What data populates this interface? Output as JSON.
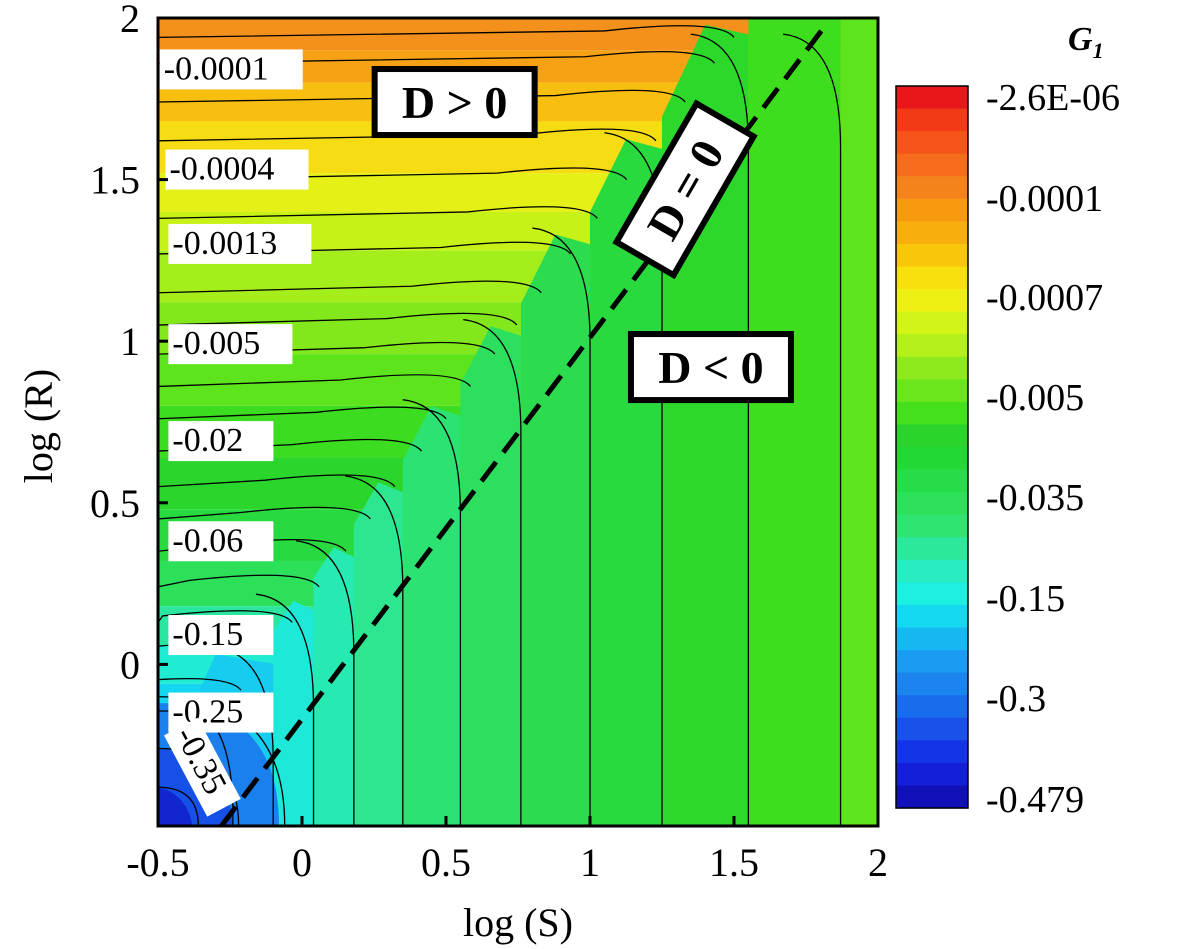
{
  "chart_data": {
    "type": "contour",
    "xlabel": "log (S)",
    "ylabel": "log (R)",
    "xlim": [
      -0.5,
      2
    ],
    "ylim": [
      -0.5,
      2
    ],
    "xticks": [
      "-0.5",
      "0",
      "0.5",
      "1",
      "1.5",
      "2"
    ],
    "yticks": [
      "0",
      "0.5",
      "1",
      "1.5",
      "2"
    ],
    "x_tick_values": [
      -0.5,
      0,
      0.5,
      1,
      1.5,
      2
    ],
    "y_tick_values": [
      0,
      0.5,
      1,
      1.5,
      2
    ],
    "colorbar": {
      "title": "G",
      "title_subscript": "1",
      "tick_labels": [
        "-2.6E-06",
        "-0.0001",
        "-0.0007",
        "-0.005",
        "-0.035",
        "-0.15",
        "-0.3",
        "-0.479"
      ],
      "colors": [
        "#e8181a",
        "#f23a16",
        "#f5551a",
        "#f46c1c",
        "#f5831c",
        "#f79a10",
        "#f8ae0c",
        "#f8c70c",
        "#f8e00e",
        "#eef014",
        "#d2f416",
        "#b4f01c",
        "#8eea1c",
        "#6ae61c",
        "#44e01c",
        "#2ad42a",
        "#22d834",
        "#26dc48",
        "#2ce05c",
        "#30e472",
        "#2ce89a",
        "#28ecc2",
        "#1cf0e0",
        "#14d8f0",
        "#16b8f2",
        "#1a9cf2",
        "#1c84ee",
        "#1a6cee",
        "#1852ea",
        "#1434e8",
        "#1420d8",
        "#1010b8"
      ]
    },
    "contour_labels": [
      {
        "text": "-0.0001",
        "x": -0.48,
        "y": 1.81
      },
      {
        "text": "-0.0004",
        "x": -0.46,
        "y": 1.5
      },
      {
        "text": "-0.0013",
        "x": -0.45,
        "y": 1.27
      },
      {
        "text": "-0.005",
        "x": -0.45,
        "y": 0.96
      },
      {
        "text": "-0.02",
        "x": -0.45,
        "y": 0.66
      },
      {
        "text": "-0.06",
        "x": -0.45,
        "y": 0.35
      },
      {
        "text": "-0.15",
        "x": -0.45,
        "y": 0.06
      },
      {
        "text": "-0.25",
        "x": -0.45,
        "y": -0.18
      }
    ],
    "rotated_contour_label": {
      "text": "-0.35",
      "x": -0.38,
      "y": -0.32
    },
    "region_labels": [
      {
        "text": "D > 0",
        "x": 0.53,
        "y": 1.74,
        "angle": 0
      },
      {
        "text": "D = 0",
        "x": 1.33,
        "y": 1.47,
        "angle": -60
      },
      {
        "text": "D < 0",
        "x": 1.42,
        "y": 0.92,
        "angle": 0
      }
    ],
    "boundary_line": {
      "label": "D = 0",
      "style": "dashed",
      "points": [
        [
          -0.28,
          -0.5
        ],
        [
          1.82,
          1.98
        ]
      ]
    }
  }
}
